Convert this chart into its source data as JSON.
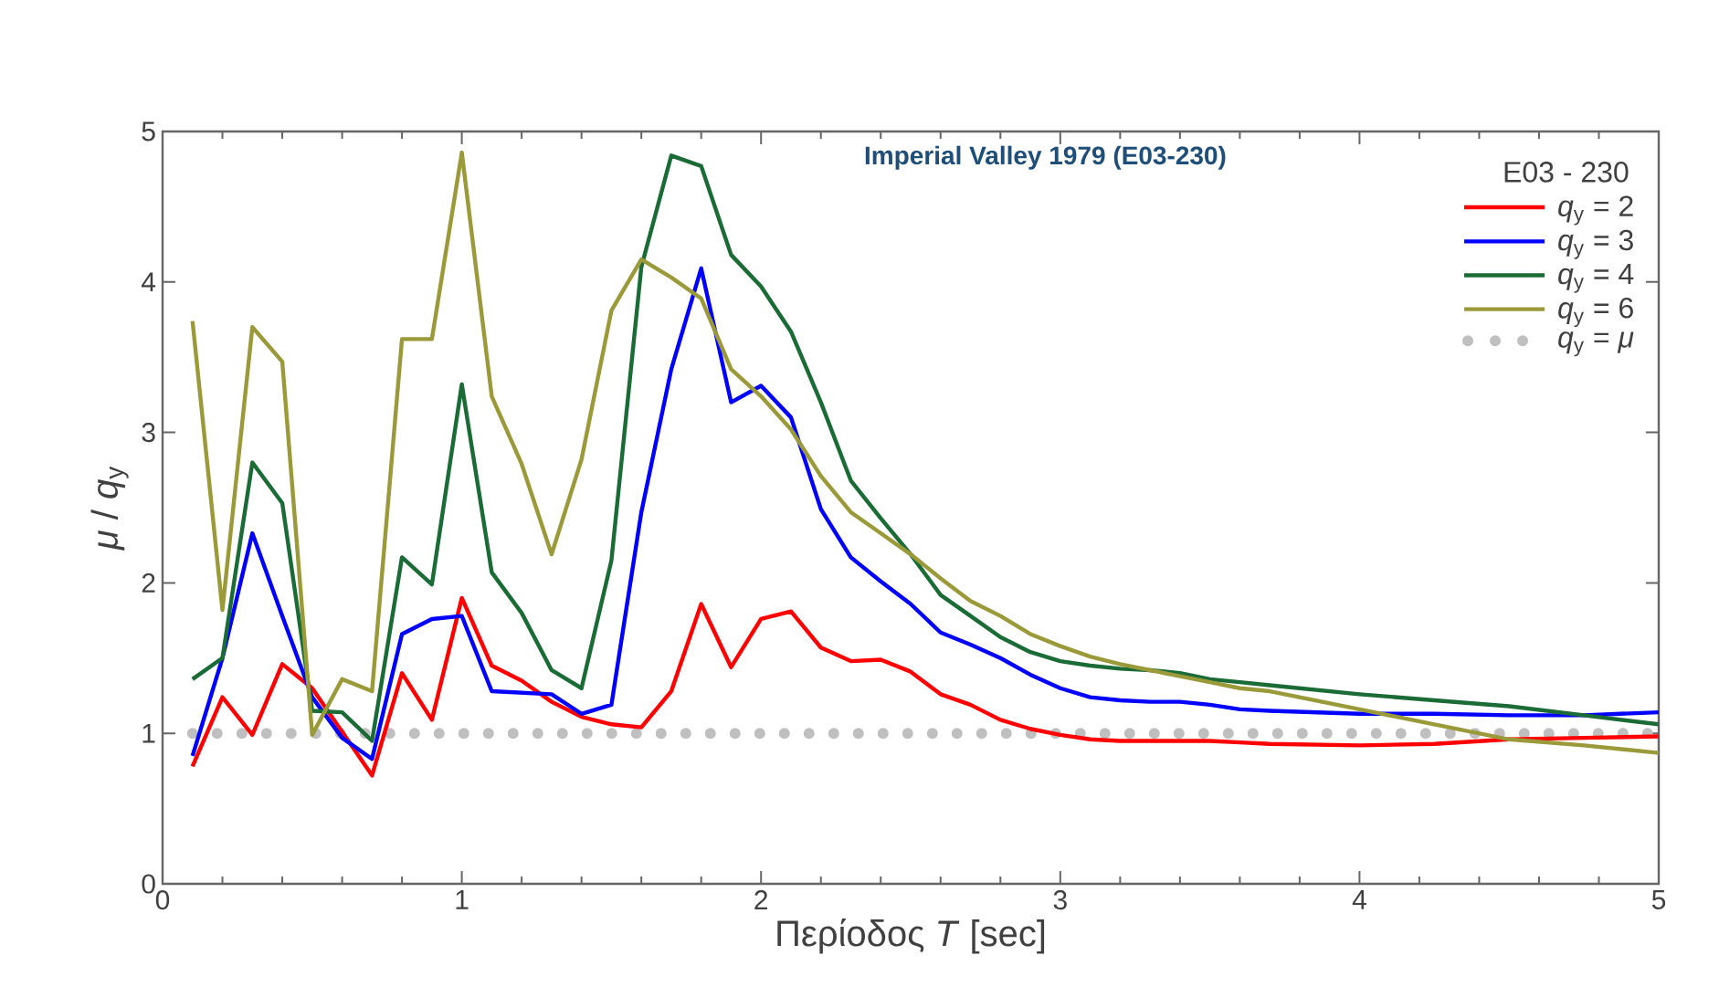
{
  "chart_data": {
    "type": "line",
    "title": "Imperial Valley 1979 (E03-230)",
    "xlabel": "Περίοδος  *T* [sec]",
    "ylabel": "*μ* / *q*$_{y}$",
    "legend_title": "E03 - 230",
    "x": [
      0.1,
      0.2,
      0.3,
      0.4,
      0.5,
      0.6,
      0.7,
      0.8,
      0.9,
      1.0,
      1.1,
      1.2,
      1.3,
      1.4,
      1.5,
      1.6,
      1.7,
      1.8,
      1.9,
      2.0,
      2.1,
      2.2,
      2.3,
      2.4,
      2.5,
      2.6,
      2.7,
      2.8,
      2.9,
      3.0,
      3.1,
      3.2,
      3.3,
      3.4,
      3.5,
      3.6,
      3.7,
      4.0,
      4.25,
      4.5,
      4.75,
      5.0
    ],
    "series": [
      {
        "name": "*q*$_{y}$ = 2",
        "color": "#ff0000",
        "values": [
          0.78,
          1.24,
          0.99,
          1.46,
          1.3,
          1.01,
          0.72,
          1.4,
          1.09,
          1.9,
          1.45,
          1.35,
          1.21,
          1.11,
          1.06,
          1.04,
          1.28,
          1.86,
          1.44,
          1.76,
          1.81,
          1.57,
          1.48,
          1.49,
          1.41,
          1.26,
          1.19,
          1.09,
          1.03,
          0.99,
          0.96,
          0.95,
          0.95,
          0.95,
          0.95,
          0.94,
          0.93,
          0.92,
          0.93,
          0.96,
          0.97,
          0.98
        ]
      },
      {
        "name": "*q*$_{y}$ = 3",
        "color": "#0000ff",
        "values": [
          0.85,
          1.5,
          2.33,
          1.78,
          1.24,
          0.97,
          0.83,
          1.66,
          1.76,
          1.78,
          1.28,
          1.27,
          1.26,
          1.13,
          1.19,
          2.47,
          3.42,
          4.09,
          3.2,
          3.31,
          3.1,
          2.49,
          2.17,
          2.01,
          1.86,
          1.67,
          1.59,
          1.5,
          1.39,
          1.3,
          1.24,
          1.22,
          1.21,
          1.21,
          1.19,
          1.16,
          1.15,
          1.13,
          1.13,
          1.12,
          1.12,
          1.14
        ]
      },
      {
        "name": "*q*$_{y}$ = 4",
        "color": "#1a6b35",
        "values": [
          1.36,
          1.5,
          2.8,
          2.53,
          1.15,
          1.14,
          0.95,
          2.17,
          1.99,
          3.32,
          2.07,
          1.8,
          1.42,
          1.3,
          2.15,
          4.1,
          4.84,
          4.77,
          4.18,
          3.97,
          3.67,
          3.2,
          2.68,
          2.43,
          2.19,
          1.92,
          1.78,
          1.64,
          1.54,
          1.48,
          1.45,
          1.43,
          1.42,
          1.4,
          1.36,
          1.34,
          1.32,
          1.26,
          1.22,
          1.18,
          1.12,
          1.06
        ]
      },
      {
        "name": "*q*$_{y}$ = 6",
        "color": "#9a9a3a",
        "values": [
          3.74,
          1.82,
          3.7,
          3.47,
          0.99,
          1.36,
          1.28,
          3.62,
          3.62,
          4.86,
          3.24,
          2.79,
          2.19,
          2.82,
          3.81,
          4.15,
          4.03,
          3.89,
          3.42,
          3.24,
          3.02,
          2.71,
          2.47,
          2.33,
          2.19,
          2.03,
          1.88,
          1.78,
          1.66,
          1.58,
          1.51,
          1.46,
          1.42,
          1.38,
          1.34,
          1.3,
          1.28,
          1.16,
          1.06,
          0.96,
          0.92,
          0.87
        ]
      },
      {
        "name": "*q*$_{y}$ = *μ*",
        "color": "#bfbfbf",
        "line_style": "dotted",
        "x": [
          0.1,
          5.0
        ],
        "values": [
          1,
          1
        ]
      }
    ],
    "xlim": [
      0,
      5
    ],
    "ylim": [
      0,
      5
    ],
    "xticks": [
      0,
      1,
      2,
      3,
      4,
      5
    ],
    "yticks": [
      0,
      1,
      2,
      3,
      4,
      5
    ],
    "grid": false,
    "legend": "top right",
    "line_style": "solid",
    "marker": "none"
  }
}
